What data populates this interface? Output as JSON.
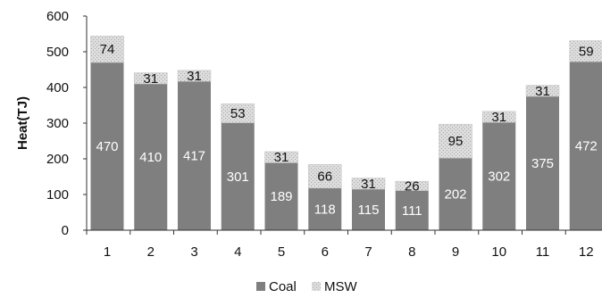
{
  "chart_data": {
    "type": "bar",
    "stacked": true,
    "title": "",
    "xlabel": "",
    "ylabel": "Heat(TJ)",
    "ylim": [
      0,
      600
    ],
    "yticks": [
      0,
      100,
      200,
      300,
      400,
      500,
      600
    ],
    "categories": [
      "1",
      "2",
      "3",
      "4",
      "5",
      "6",
      "7",
      "8",
      "9",
      "10",
      "11",
      "12"
    ],
    "series": [
      {
        "name": "Coal",
        "values": [
          470,
          410,
          417,
          301,
          189,
          118,
          115,
          111,
          202,
          302,
          375,
          472
        ],
        "color": "#7f7f7f"
      },
      {
        "name": "MSW",
        "values": [
          74,
          31,
          31,
          53,
          31,
          66,
          31,
          26,
          95,
          31,
          31,
          59
        ],
        "color": "#d9d9d9"
      }
    ],
    "grid": false,
    "legend_position": "bottom"
  },
  "colors": {
    "coal": "#7f7f7f",
    "msw": "#d9d9d9",
    "axis": "#333333",
    "text": "#111111"
  }
}
